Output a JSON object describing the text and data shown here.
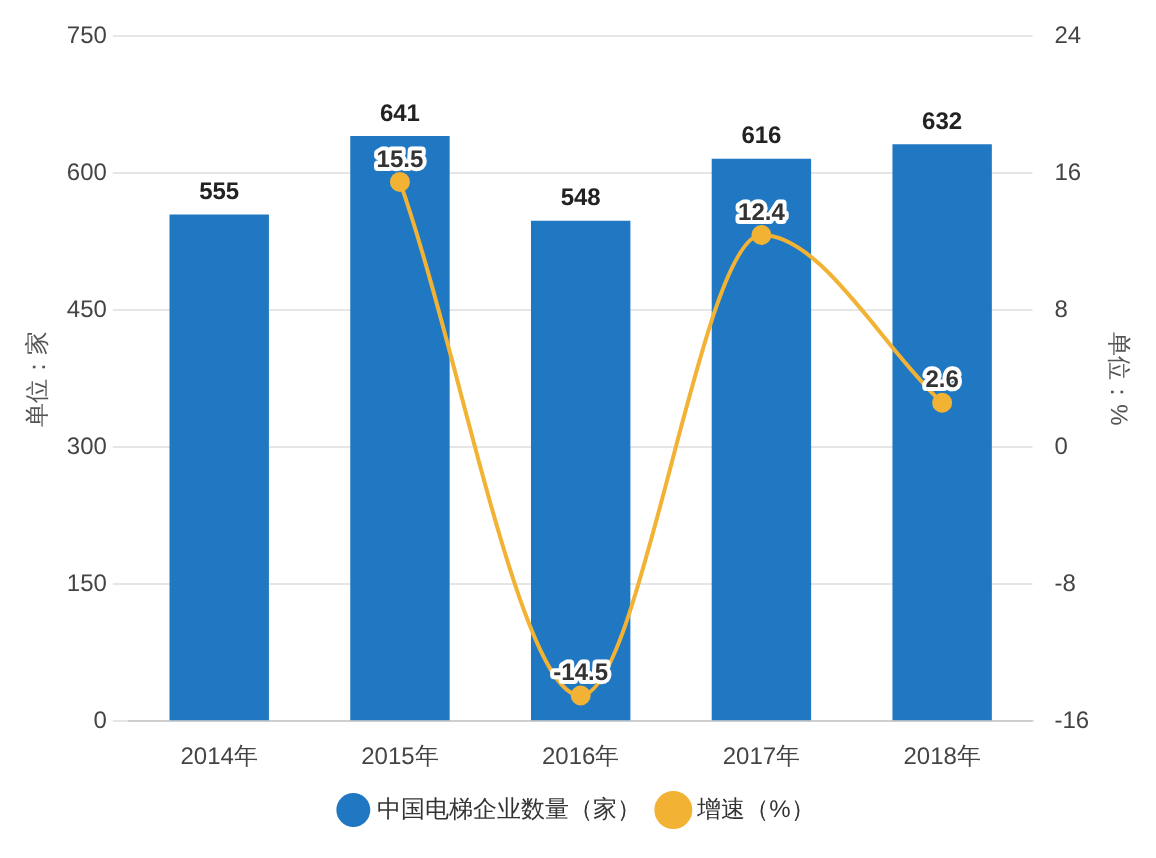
{
  "chart_data": {
    "type": "bar",
    "categories": [
      "2014年",
      "2015年",
      "2016年",
      "2017年",
      "2018年"
    ],
    "series": [
      {
        "name": "中国电梯企业数量（家）",
        "color": "#1f78c1",
        "values": [
          555,
          641,
          548,
          616,
          632
        ]
      },
      {
        "name": "增速（%）",
        "type": "line",
        "axis": "y2",
        "color": "#f2b234",
        "values": [
          null,
          15.5,
          -14.5,
          12.4,
          2.6
        ]
      }
    ],
    "ylabel": "单位：家",
    "y2label": "单位：%",
    "ylim": [
      0,
      750
    ],
    "yticks": [
      0,
      150,
      300,
      450,
      600,
      750
    ],
    "y2lim": [
      -16,
      24
    ],
    "y2ticks": [
      -16,
      -8,
      0,
      8,
      16,
      24
    ],
    "grid": "y",
    "legend": "bottom",
    "marker": "circle",
    "data_labels": true
  }
}
